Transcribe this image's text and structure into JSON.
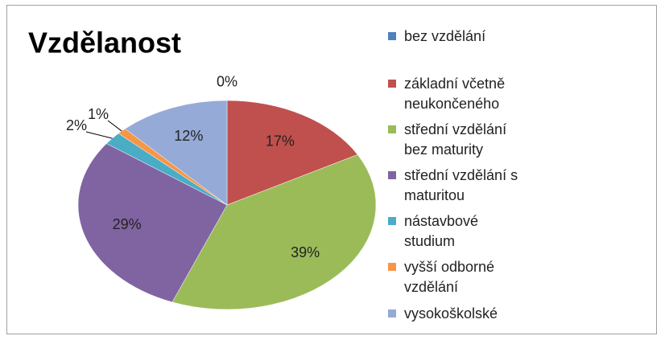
{
  "chart_data": {
    "type": "pie",
    "title": "Vzdělanost",
    "categories": [
      "bez vzdělání",
      "základní včetně neukončeného",
      "střední vzdělání bez maturity",
      "střední vzdělání s maturitou",
      "nástavbové studium",
      "vyšší odborné vzdělání",
      "vysokoškolské"
    ],
    "values": [
      0,
      17,
      39,
      29,
      2,
      1,
      12
    ],
    "value_labels": [
      "0%",
      "17%",
      "39%",
      "29%",
      "2%",
      "1%",
      "12%"
    ],
    "colors": [
      "#4F81BD",
      "#C0504D",
      "#9BBB59",
      "#8064A2",
      "#4BACC6",
      "#F79646",
      "#95AAD6"
    ],
    "legend": "right"
  }
}
